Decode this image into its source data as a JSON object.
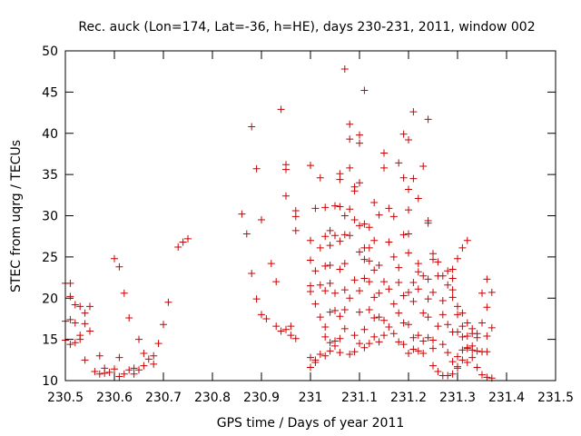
{
  "chart_data": {
    "type": "scatter",
    "title": "Rec. auck (Lon=174, Lat=-36, h=HE), days 230-231, 2011, window 002",
    "xlabel": "GPS time / Days of year 2011",
    "ylabel": "STEC from uqrg / TECUs",
    "xlim": [
      230.5,
      231.5
    ],
    "ylim": [
      10,
      50
    ],
    "x_ticks": [
      "230.5",
      "230.6",
      "230.7",
      "230.8",
      "230.9",
      "231",
      "231.1",
      "231.2",
      "231.3",
      "231.4",
      "231.5"
    ],
    "y_ticks": [
      "10",
      "15",
      "20",
      "25",
      "30",
      "35",
      "40",
      "45",
      "50"
    ],
    "grid": false,
    "legend": "none",
    "marker": "plus",
    "color": "#cc0000",
    "points": [
      [
        230.5,
        21.8
      ],
      [
        230.51,
        21.8
      ],
      [
        230.51,
        20.2
      ],
      [
        230.5,
        17.2
      ],
      [
        230.51,
        17.4
      ],
      [
        230.5,
        14.9
      ],
      [
        230.51,
        14.4
      ],
      [
        230.52,
        19.2
      ],
      [
        230.52,
        17.0
      ],
      [
        230.52,
        14.6
      ],
      [
        230.53,
        19.0
      ],
      [
        230.53,
        15.5
      ],
      [
        230.53,
        15.0
      ],
      [
        230.54,
        18.2
      ],
      [
        230.54,
        16.9
      ],
      [
        230.54,
        12.5
      ],
      [
        230.55,
        19.0
      ],
      [
        230.55,
        16.0
      ],
      [
        230.56,
        11.1
      ],
      [
        230.57,
        13.0
      ],
      [
        230.57,
        10.8
      ],
      [
        230.58,
        11.5
      ],
      [
        230.58,
        10.9
      ],
      [
        230.59,
        11.0
      ],
      [
        230.6,
        11.4
      ],
      [
        230.6,
        24.8
      ],
      [
        230.61,
        23.8
      ],
      [
        230.61,
        12.8
      ],
      [
        230.61,
        10.5
      ],
      [
        230.62,
        10.8
      ],
      [
        230.62,
        20.6
      ],
      [
        230.63,
        11.3
      ],
      [
        230.63,
        17.6
      ],
      [
        230.64,
        11.5
      ],
      [
        230.64,
        10.8
      ],
      [
        230.65,
        15.0
      ],
      [
        230.65,
        11.3
      ],
      [
        230.66,
        13.3
      ],
      [
        230.66,
        11.8
      ],
      [
        230.67,
        12.6
      ],
      [
        230.68,
        13.0
      ],
      [
        230.68,
        12.0
      ],
      [
        230.69,
        14.5
      ],
      [
        230.7,
        16.8
      ],
      [
        230.71,
        19.5
      ],
      [
        230.73,
        26.2
      ],
      [
        230.74,
        26.8
      ],
      [
        230.75,
        27.2
      ],
      [
        230.86,
        30.2
      ],
      [
        230.87,
        27.8
      ],
      [
        230.88,
        40.8
      ],
      [
        230.88,
        23.0
      ],
      [
        230.89,
        35.7
      ],
      [
        230.89,
        19.9
      ],
      [
        230.9,
        29.5
      ],
      [
        230.9,
        18.0
      ],
      [
        230.91,
        17.5
      ],
      [
        230.92,
        24.2
      ],
      [
        230.93,
        22.0
      ],
      [
        230.93,
        16.6
      ],
      [
        230.94,
        42.9
      ],
      [
        230.94,
        16.0
      ],
      [
        230.95,
        36.2
      ],
      [
        230.95,
        32.4
      ],
      [
        230.95,
        35.6
      ],
      [
        230.95,
        16.2
      ],
      [
        230.96,
        15.5
      ],
      [
        230.96,
        16.6
      ],
      [
        230.97,
        30.6
      ],
      [
        230.97,
        29.9
      ],
      [
        230.97,
        28.2
      ],
      [
        230.97,
        15.1
      ],
      [
        231.0,
        36.1
      ],
      [
        231.0,
        27.0
      ],
      [
        231.0,
        24.6
      ],
      [
        231.0,
        21.5
      ],
      [
        231.0,
        20.8
      ],
      [
        231.0,
        12.8
      ],
      [
        231.0,
        11.6
      ],
      [
        231.01,
        30.9
      ],
      [
        231.01,
        23.3
      ],
      [
        231.01,
        19.3
      ],
      [
        231.01,
        12.5
      ],
      [
        231.01,
        12.2
      ],
      [
        231.02,
        34.6
      ],
      [
        231.02,
        26.1
      ],
      [
        231.02,
        21.6
      ],
      [
        231.02,
        17.7
      ],
      [
        231.02,
        13.2
      ],
      [
        231.03,
        31.0
      ],
      [
        231.03,
        27.5
      ],
      [
        231.03,
        23.9
      ],
      [
        231.03,
        20.9
      ],
      [
        231.03,
        16.5
      ],
      [
        231.03,
        15.3
      ],
      [
        231.03,
        13.0
      ],
      [
        231.04,
        28.2
      ],
      [
        231.04,
        26.4
      ],
      [
        231.04,
        24.0
      ],
      [
        231.04,
        21.8
      ],
      [
        231.04,
        18.3
      ],
      [
        231.04,
        14.6
      ],
      [
        231.04,
        13.6
      ],
      [
        231.05,
        31.2
      ],
      [
        231.05,
        27.6
      ],
      [
        231.05,
        20.6
      ],
      [
        231.05,
        18.5
      ],
      [
        231.05,
        14.8
      ],
      [
        231.05,
        14.2
      ],
      [
        231.06,
        35.1
      ],
      [
        231.06,
        34.4
      ],
      [
        231.06,
        31.1
      ],
      [
        231.06,
        26.9
      ],
      [
        231.06,
        23.5
      ],
      [
        231.06,
        17.8
      ],
      [
        231.06,
        15.1
      ],
      [
        231.06,
        13.4
      ],
      [
        231.07,
        47.8
      ],
      [
        231.07,
        30.0
      ],
      [
        231.07,
        27.7
      ],
      [
        231.07,
        24.2
      ],
      [
        231.07,
        21.0
      ],
      [
        231.07,
        18.6
      ],
      [
        231.07,
        16.3
      ],
      [
        231.08,
        41.1
      ],
      [
        231.08,
        39.3
      ],
      [
        231.08,
        35.8
      ],
      [
        231.08,
        30.8
      ],
      [
        231.08,
        27.6
      ],
      [
        231.08,
        20.0
      ],
      [
        231.08,
        13.2
      ],
      [
        231.09,
        33.5
      ],
      [
        231.09,
        33.0
      ],
      [
        231.09,
        29.5
      ],
      [
        231.09,
        22.2
      ],
      [
        231.09,
        15.5
      ],
      [
        231.09,
        13.5
      ],
      [
        231.1,
        39.8
      ],
      [
        231.1,
        38.8
      ],
      [
        231.1,
        34.0
      ],
      [
        231.1,
        28.8
      ],
      [
        231.1,
        25.6
      ],
      [
        231.1,
        20.9
      ],
      [
        231.1,
        18.3
      ],
      [
        231.1,
        14.5
      ],
      [
        231.11,
        45.2
      ],
      [
        231.11,
        29.0
      ],
      [
        231.11,
        26.1
      ],
      [
        231.11,
        24.7
      ],
      [
        231.11,
        22.4
      ],
      [
        231.11,
        16.2
      ],
      [
        231.11,
        14.0
      ],
      [
        231.12,
        28.6
      ],
      [
        231.12,
        26.1
      ],
      [
        231.12,
        24.5
      ],
      [
        231.12,
        22.0
      ],
      [
        231.12,
        18.6
      ],
      [
        231.12,
        14.5
      ],
      [
        231.13,
        31.6
      ],
      [
        231.13,
        27.0
      ],
      [
        231.13,
        23.4
      ],
      [
        231.13,
        20.1
      ],
      [
        231.13,
        17.6
      ],
      [
        231.13,
        15.3
      ],
      [
        231.14,
        30.1
      ],
      [
        231.14,
        24.0
      ],
      [
        231.14,
        20.6
      ],
      [
        231.14,
        17.7
      ],
      [
        231.14,
        14.7
      ],
      [
        231.15,
        37.6
      ],
      [
        231.15,
        35.8
      ],
      [
        231.15,
        22.0
      ],
      [
        231.15,
        17.3
      ],
      [
        231.15,
        15.5
      ],
      [
        231.16,
        30.9
      ],
      [
        231.16,
        26.8
      ],
      [
        231.16,
        21.1
      ],
      [
        231.16,
        16.5
      ],
      [
        231.17,
        29.9
      ],
      [
        231.17,
        25.0
      ],
      [
        231.17,
        19.3
      ],
      [
        231.17,
        15.7
      ],
      [
        231.18,
        36.4
      ],
      [
        231.18,
        23.7
      ],
      [
        231.18,
        21.9
      ],
      [
        231.18,
        18.2
      ],
      [
        231.18,
        14.7
      ],
      [
        231.19,
        39.9
      ],
      [
        231.19,
        34.6
      ],
      [
        231.19,
        27.7
      ],
      [
        231.19,
        20.3
      ],
      [
        231.19,
        17.0
      ],
      [
        231.19,
        14.4
      ],
      [
        231.2,
        39.2
      ],
      [
        231.2,
        33.2
      ],
      [
        231.2,
        30.7
      ],
      [
        231.2,
        27.8
      ],
      [
        231.2,
        25.5
      ],
      [
        231.2,
        20.7
      ],
      [
        231.2,
        16.8
      ],
      [
        231.2,
        13.3
      ],
      [
        231.21,
        42.6
      ],
      [
        231.21,
        34.5
      ],
      [
        231.21,
        21.9
      ],
      [
        231.21,
        19.6
      ],
      [
        231.21,
        15.2
      ],
      [
        231.21,
        13.8
      ],
      [
        231.22,
        32.1
      ],
      [
        231.22,
        24.2
      ],
      [
        231.22,
        23.2
      ],
      [
        231.22,
        21.1
      ],
      [
        231.22,
        15.5
      ],
      [
        231.22,
        13.6
      ],
      [
        231.23,
        36.0
      ],
      [
        231.23,
        22.7
      ],
      [
        231.23,
        18.2
      ],
      [
        231.23,
        14.8
      ],
      [
        231.23,
        13.3
      ],
      [
        231.24,
        41.7
      ],
      [
        231.24,
        29.4
      ],
      [
        231.24,
        29.1
      ],
      [
        231.24,
        22.3
      ],
      [
        231.24,
        19.9
      ],
      [
        231.24,
        17.7
      ],
      [
        231.24,
        15.2
      ],
      [
        231.25,
        25.4
      ],
      [
        231.25,
        24.7
      ],
      [
        231.25,
        20.7
      ],
      [
        231.25,
        14.9
      ],
      [
        231.25,
        13.9
      ],
      [
        231.25,
        11.8
      ],
      [
        231.26,
        24.4
      ],
      [
        231.26,
        22.7
      ],
      [
        231.26,
        16.6
      ],
      [
        231.26,
        11.1
      ],
      [
        231.27,
        22.7
      ],
      [
        231.27,
        19.7
      ],
      [
        231.27,
        18.0
      ],
      [
        231.27,
        14.4
      ],
      [
        231.27,
        10.6
      ],
      [
        231.28,
        23.3
      ],
      [
        231.28,
        21.6
      ],
      [
        231.28,
        16.8
      ],
      [
        231.28,
        13.4
      ],
      [
        231.28,
        10.6
      ],
      [
        231.29,
        23.5
      ],
      [
        231.29,
        22.4
      ],
      [
        231.29,
        21.0
      ],
      [
        231.29,
        20.1
      ],
      [
        231.29,
        15.9
      ],
      [
        231.29,
        12.3
      ],
      [
        231.29,
        10.8
      ],
      [
        231.3,
        24.8
      ],
      [
        231.3,
        19.0
      ],
      [
        231.3,
        18.0
      ],
      [
        231.3,
        15.9
      ],
      [
        231.3,
        12.9
      ],
      [
        231.3,
        11.7
      ],
      [
        231.3,
        11.5
      ],
      [
        231.31,
        26.1
      ],
      [
        231.31,
        18.2
      ],
      [
        231.31,
        16.6
      ],
      [
        231.31,
        15.3
      ],
      [
        231.31,
        13.7
      ],
      [
        231.31,
        12.5
      ],
      [
        231.32,
        27.0
      ],
      [
        231.32,
        17.0
      ],
      [
        231.32,
        15.4
      ],
      [
        231.32,
        14.0
      ],
      [
        231.32,
        13.9
      ],
      [
        231.32,
        12.2
      ],
      [
        231.33,
        16.3
      ],
      [
        231.33,
        15.7
      ],
      [
        231.33,
        14.2
      ],
      [
        231.33,
        13.7
      ],
      [
        231.33,
        12.8
      ],
      [
        231.34,
        15.7
      ],
      [
        231.34,
        15.2
      ],
      [
        231.34,
        13.6
      ],
      [
        231.34,
        11.6
      ],
      [
        231.35,
        20.6
      ],
      [
        231.35,
        17.0
      ],
      [
        231.35,
        13.5
      ],
      [
        231.35,
        10.7
      ],
      [
        231.36,
        22.3
      ],
      [
        231.36,
        18.9
      ],
      [
        231.36,
        15.4
      ],
      [
        231.36,
        13.5
      ],
      [
        231.36,
        10.4
      ],
      [
        231.37,
        20.7
      ],
      [
        231.37,
        16.4
      ],
      [
        231.37,
        10.3
      ]
    ]
  }
}
